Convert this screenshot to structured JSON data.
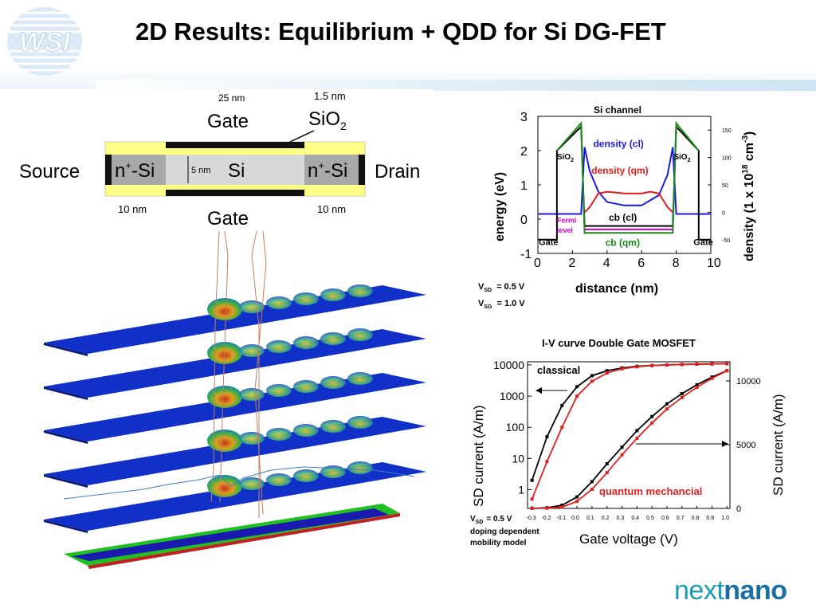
{
  "title": "2D Results: Equilibrium + QDD for Si DG-FET",
  "logo_text": "WSI",
  "footer": {
    "part1": "next",
    "part2": "nano"
  },
  "device": {
    "dim_gate_top": "25 nm",
    "dim_oxide": "1.5 nm",
    "oxide_label": "SiO",
    "oxide_sub": "2",
    "gate_top": "Gate",
    "gate_bottom": "Gate",
    "source": "Source",
    "drain": "Drain",
    "n_si_left_a": "n",
    "n_si_left_sup": "+",
    "n_si_left_b": "-Si",
    "n_si_right_a": "n",
    "n_si_right_sup": "+",
    "n_si_right_b": "-Si",
    "channel": "Si",
    "channel_dim": "5 nm",
    "dim_left": "10 nm",
    "dim_right": "10 nm"
  },
  "band_chart": {
    "title": "Si channel",
    "xlabel": "distance (nm)",
    "ylabel": "energy (eV)",
    "y2label_a": "density (1 x 10",
    "y2label_sup": "18",
    "y2label_b": " cm",
    "y2label_sup2": "-3",
    "y2label_c": ")",
    "xticks": [
      "0",
      "2",
      "4",
      "6",
      "8",
      "10"
    ],
    "yticks": [
      "-1",
      "0",
      "1",
      "2",
      "3"
    ],
    "y2ticks": [
      "-50",
      "0",
      "50",
      "100",
      "150"
    ],
    "labels": {
      "sio2_left": "SiO",
      "sio2_right": "SiO",
      "sub2": "2",
      "density_cl": "density (cl)",
      "density_qm": "density (qm)",
      "cb_cl": "cb (cl)",
      "cb_qm": "cb (qm)",
      "fermi": "Fermi",
      "level": "level",
      "gate_left": "Gate",
      "gate_right": "Gate"
    },
    "bias_sd_label": "V",
    "bias_sd_sub": "SD",
    "bias_sd_val": "= 0.5 V",
    "bias_sg_label": "V",
    "bias_sg_sub": "SG",
    "bias_sg_val": "= 1.0 V",
    "colors": {
      "density_cl": "#1a1ae6",
      "density_qm": "#e61a1a",
      "cb_cl": "#000000",
      "cb_qm": "#1a8a1a",
      "fermi": "#cc00cc"
    }
  },
  "chart_data": [
    {
      "type": "line",
      "title": "Si channel",
      "xlabel": "distance (nm)",
      "ylabel": "energy (eV)",
      "xlim": [
        0,
        10
      ],
      "ylim": [
        -1,
        3
      ],
      "series": [
        {
          "name": "density (cl)",
          "x": [
            0,
            2.5,
            2.7,
            3,
            3.5,
            4,
            5,
            6,
            7,
            7.5,
            7.8,
            8,
            10
          ],
          "y": [
            0.15,
            0.15,
            2.1,
            1.4,
            0.8,
            0.5,
            0.4,
            0.4,
            0.7,
            1.3,
            2.1,
            0.15,
            0.15
          ]
        },
        {
          "name": "density (qm)",
          "x": [
            2.7,
            3,
            3.5,
            4,
            5,
            6,
            6.5,
            7,
            7.5,
            7.8
          ],
          "y": [
            0.2,
            0.35,
            0.75,
            0.8,
            0.75,
            0.75,
            0.8,
            0.75,
            0.35,
            0.2
          ]
        },
        {
          "name": "cb (cl)",
          "x": [
            0,
            1.1,
            1.1,
            2.5,
            2.7,
            7.8,
            8,
            9.3,
            9.3,
            10
          ],
          "y": [
            -0.6,
            -0.6,
            2.0,
            2.7,
            -0.2,
            -0.2,
            2.7,
            2.0,
            -0.6,
            -0.6
          ]
        },
        {
          "name": "cb (qm)",
          "x": [
            1.1,
            2.5,
            2.7,
            7.8,
            8,
            9.3
          ],
          "y": [
            2.0,
            2.8,
            -0.4,
            -0.4,
            2.8,
            2.0
          ]
        },
        {
          "name": "Fermi level",
          "x": [
            2.7,
            7.8
          ],
          "y": [
            -0.3,
            -0.3
          ]
        }
      ]
    },
    {
      "type": "line",
      "title": "I-V curve Double Gate MOSFET",
      "xlabel": "Gate voltage (V)",
      "ylabel": "SD current (A/m)",
      "y2label": "SD current (A/m)",
      "xticks": [
        "-0.3",
        "-0.2",
        "-0.1",
        "0.0",
        "0.1",
        "0.2",
        "0.3",
        "0.4",
        "0.5",
        "0.6",
        "0.7",
        "0.8",
        "0.9",
        "1.0"
      ],
      "yticks_log": [
        "1",
        "10",
        "100",
        "1000",
        "10000"
      ],
      "yticks_lin": [
        "0",
        "5000",
        "10000"
      ],
      "x": [
        -0.3,
        -0.2,
        -0.1,
        0.0,
        0.1,
        0.2,
        0.3,
        0.4,
        0.5,
        0.6,
        0.7,
        0.8,
        0.9,
        1.0
      ],
      "series": [
        {
          "name": "classical",
          "axis": "log",
          "values": [
            2,
            50,
            500,
            2000,
            4500,
            6500,
            8000,
            9000,
            9600,
            10000,
            10300,
            10500,
            10700,
            11000
          ]
        },
        {
          "name": "quantum mechancial",
          "axis": "log",
          "values": [
            0.5,
            8,
            100,
            1000,
            3000,
            5500,
            7500,
            8700,
            9500,
            10000,
            10300,
            10600,
            10800,
            11000
          ]
        },
        {
          "name": "classical",
          "axis": "linear",
          "values": [
            0,
            50,
            250,
            900,
            2100,
            3500,
            4800,
            6100,
            7200,
            8200,
            9000,
            9700,
            10300,
            10800
          ]
        },
        {
          "name": "quantum mechancial",
          "axis": "linear",
          "values": [
            0,
            20,
            100,
            550,
            1500,
            2800,
            4200,
            5500,
            6700,
            7800,
            8700,
            9500,
            10200,
            10800
          ]
        }
      ]
    }
  ],
  "iv_chart": {
    "title": "I-V curve Double Gate MOSFET",
    "xlabel": "Gate voltage (V)",
    "ylabel": "SD current (A/m)",
    "y2label": "SD current (A/m)",
    "label_classical": "classical",
    "label_qm": "quantum mechancial",
    "note_v": "V",
    "note_sub": "SD",
    "note_val": "= 0.5 V",
    "note_line2": "doping dependent",
    "note_line3": "mobility model"
  }
}
